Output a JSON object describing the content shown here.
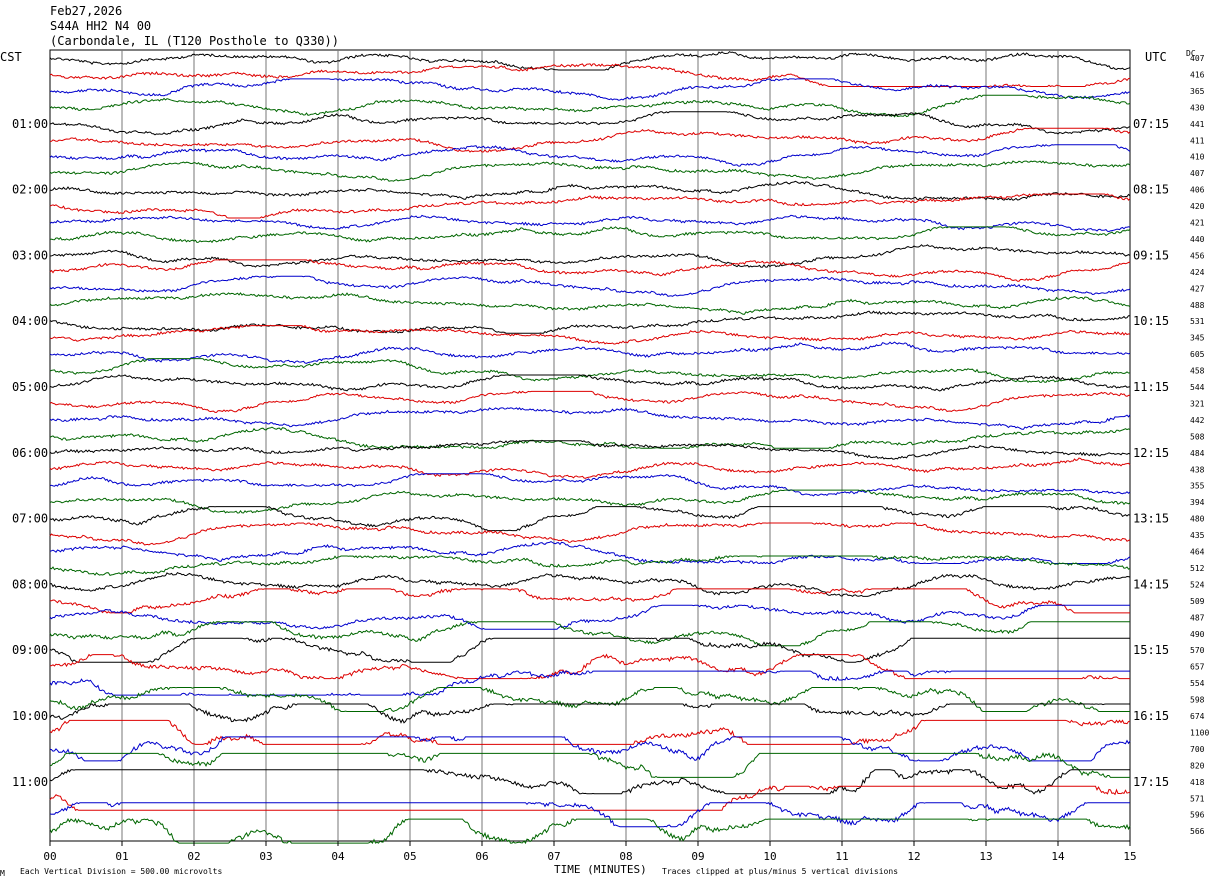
{
  "header": {
    "date": "Feb27,2026",
    "station": "S44A HH2 N4 00",
    "location": "(Carbondale, IL (T120 Posthole to Q330))"
  },
  "left_zone": "CST",
  "right_zone": "UTC",
  "dc_label": "DC",
  "footer": {
    "division_note": "Each Vertical Division =  500.00 microvolts",
    "xlabel": "TIME (MINUTES)",
    "clip_note": "Traces clipped at plus/minus 5 vertical divisions",
    "corner_mark": "M"
  },
  "chart_data": {
    "type": "line",
    "title": "S44A HH2 N4 00",
    "xlabel": "TIME (MINUTES)",
    "xlim": [
      0,
      15
    ],
    "x_ticks": [
      "00",
      "01",
      "02",
      "03",
      "04",
      "05",
      "06",
      "07",
      "08",
      "09",
      "10",
      "11",
      "12",
      "13",
      "14",
      "15"
    ],
    "left_time_labels": [
      "01:00",
      "02:00",
      "03:00",
      "04:00",
      "05:00",
      "06:00",
      "07:00",
      "08:00",
      "09:00",
      "10:00",
      "11:00"
    ],
    "right_time_labels": [
      "07:15",
      "08:15",
      "09:15",
      "10:15",
      "11:15",
      "12:15",
      "13:15",
      "14:15",
      "15:15",
      "16:15",
      "17:15"
    ],
    "trace_colors": [
      "#000000",
      "#dd0000",
      "#0000cc",
      "#006600"
    ],
    "trace_minutes_per_line": 15,
    "traces_per_hour": 4,
    "dc_offsets": [
      "407",
      "416",
      "365",
      "430",
      "441",
      "411",
      "410",
      "407",
      "406",
      "420",
      "421",
      "440",
      "456",
      "424",
      "427",
      "488",
      "531",
      "345",
      "605",
      "458",
      "544",
      "321",
      "442",
      "508",
      "484",
      "438",
      "355",
      "394",
      "480",
      "435",
      "464",
      "512",
      "524",
      "509",
      "487",
      "490",
      "570",
      "657",
      "554",
      "598",
      "674",
      "1100",
      "700",
      "820",
      "418",
      "571",
      "596",
      "566"
    ],
    "activity": [
      1,
      1,
      1,
      1,
      1,
      1,
      1,
      1,
      1,
      1,
      1,
      1,
      1,
      1,
      1,
      1,
      1,
      1,
      1,
      1,
      1,
      1,
      1,
      1.2,
      1,
      1,
      1,
      1,
      1.6,
      1.2,
      1.2,
      1.4,
      1.5,
      2,
      1.6,
      2,
      2.4,
      2.6,
      2.8,
      3,
      3.2,
      3.6,
      3.4,
      3.8,
      3.6,
      4,
      4,
      4
    ]
  }
}
